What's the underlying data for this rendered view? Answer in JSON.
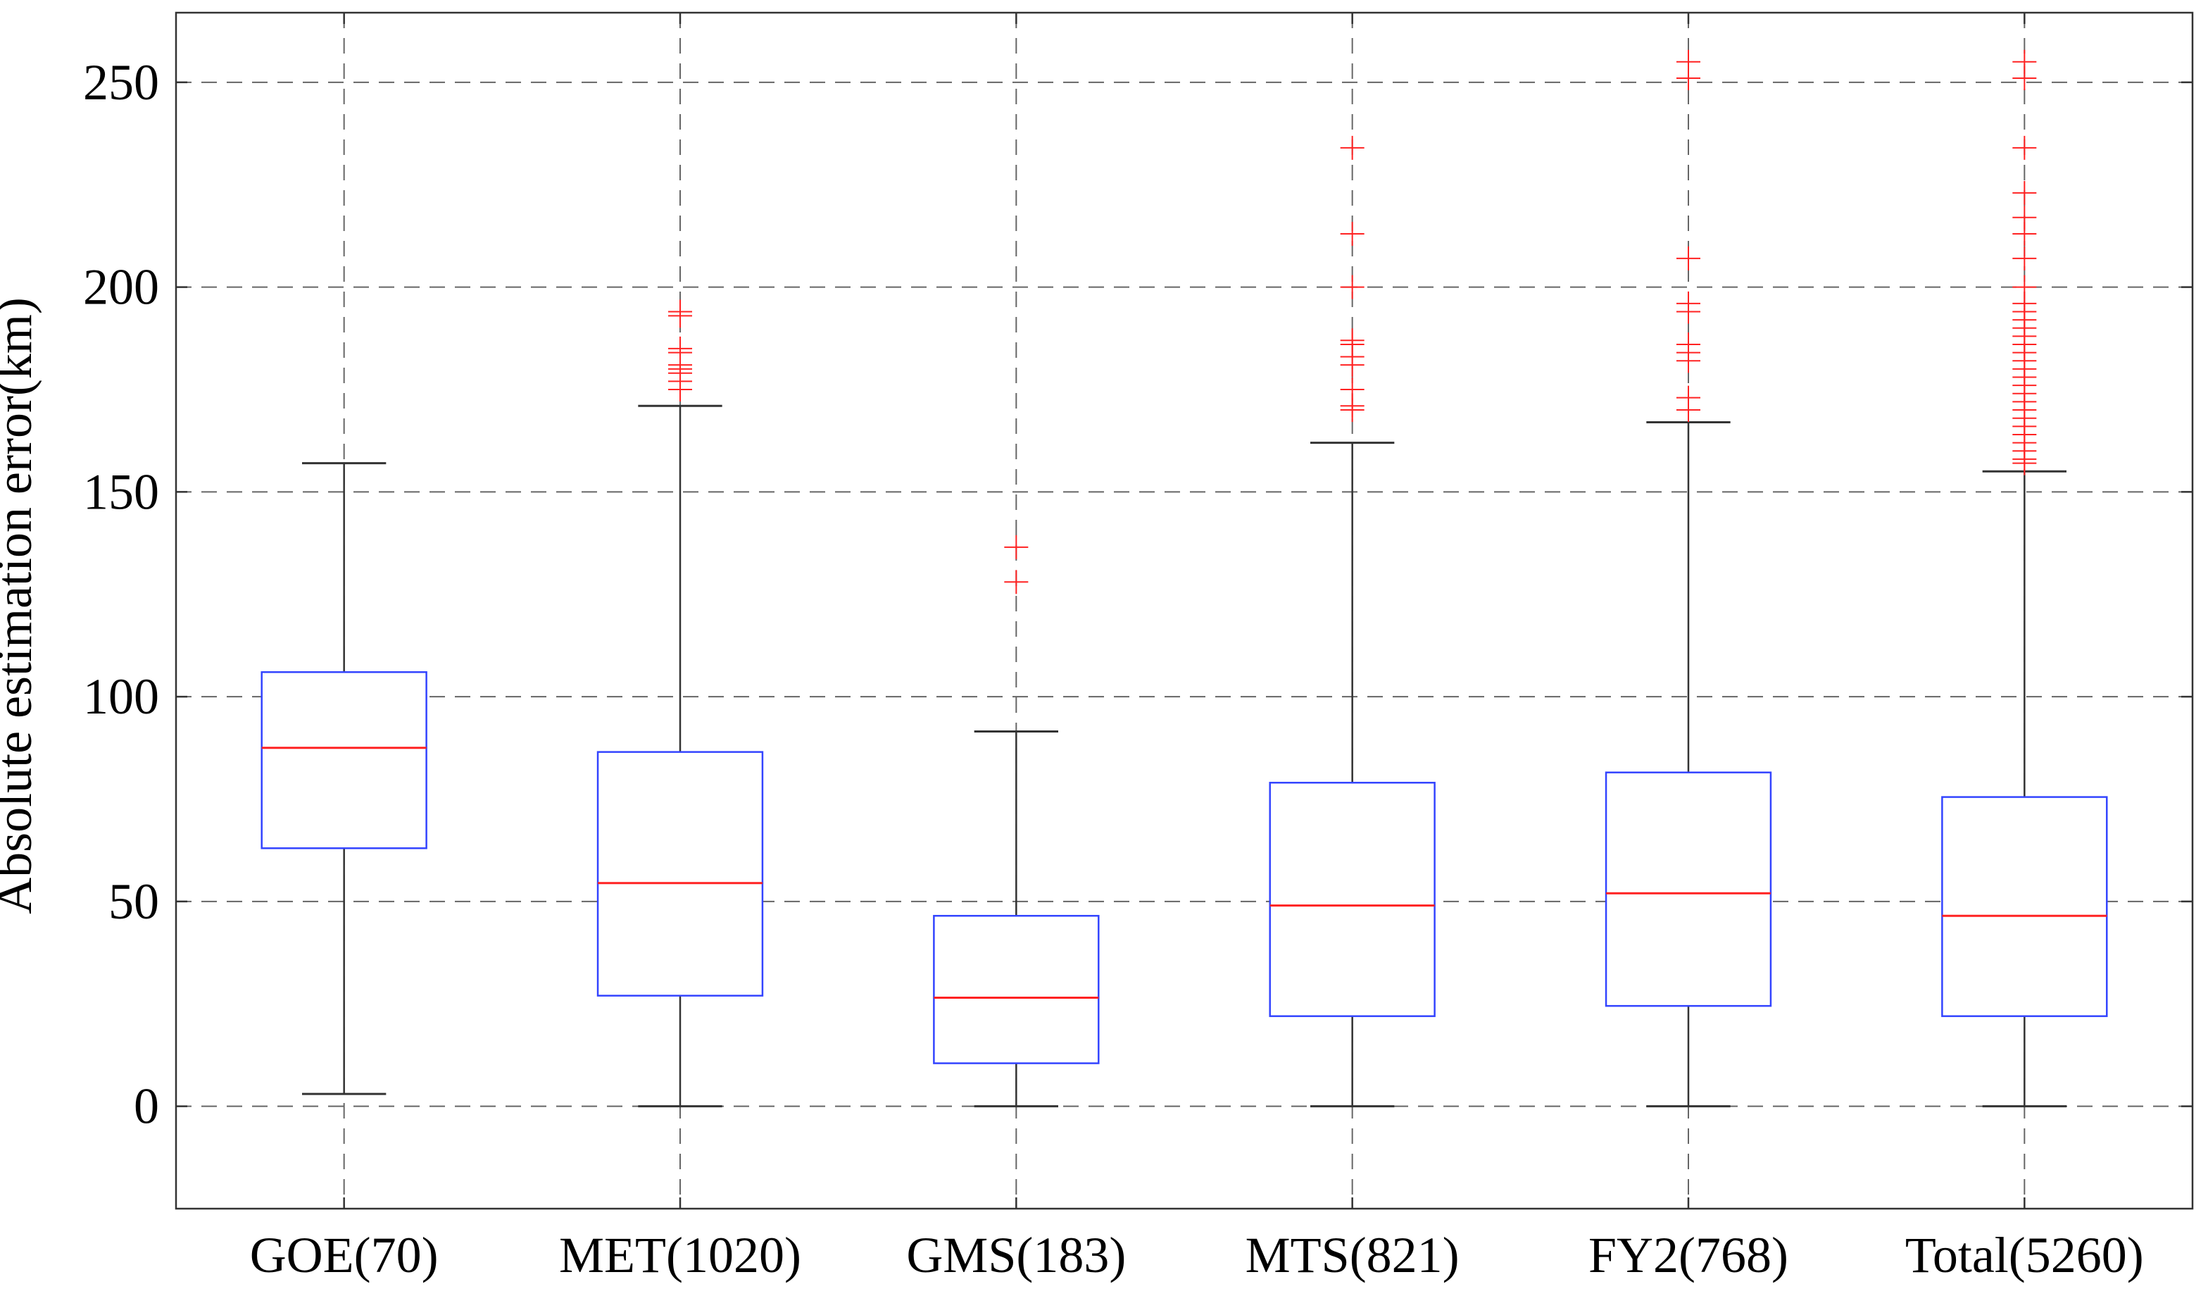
{
  "chart_data": {
    "type": "box",
    "ylabel": "Absolute estimation error(km)",
    "xlabel": "",
    "title": "",
    "ylim": [
      -25,
      267
    ],
    "yticks": [
      0,
      50,
      100,
      150,
      200,
      250
    ],
    "grid": true,
    "categories": [
      "GOE(70)",
      "MET(1020)",
      "GMS(183)",
      "MTS(821)",
      "FY2(768)",
      "Total(5260)"
    ],
    "boxes": [
      {
        "label": "GOE(70)",
        "whisker_low": 3,
        "q1": 63,
        "median": 87.5,
        "q3": 106,
        "whisker_high": 157,
        "outliers": []
      },
      {
        "label": "MET(1020)",
        "whisker_low": 0,
        "q1": 27,
        "median": 54.5,
        "q3": 86.5,
        "whisker_high": 171,
        "outliers": [
          175,
          177,
          179,
          180,
          181,
          184,
          185,
          193,
          194
        ]
      },
      {
        "label": "GMS(183)",
        "whisker_low": 0,
        "q1": 10.5,
        "median": 26.5,
        "q3": 46.5,
        "whisker_high": 91.5,
        "outliers": [
          128,
          136.5
        ]
      },
      {
        "label": "MTS(821)",
        "whisker_low": 0,
        "q1": 22,
        "median": 49,
        "q3": 79,
        "whisker_high": 162,
        "outliers": [
          170,
          171,
          175,
          181,
          183,
          186,
          187,
          200,
          213,
          234
        ]
      },
      {
        "label": "FY2(768)",
        "whisker_low": 0,
        "q1": 24.5,
        "median": 52,
        "q3": 81.5,
        "whisker_high": 167,
        "outliers": [
          170,
          173,
          182,
          184,
          186,
          194,
          196,
          207,
          251,
          255
        ]
      },
      {
        "label": "Total(5260)",
        "whisker_low": 0,
        "q1": 22,
        "median": 46.5,
        "q3": 75.5,
        "whisker_high": 155,
        "outliers": [
          157,
          158,
          160,
          162,
          164,
          166,
          168,
          170,
          172,
          174,
          176,
          178,
          180,
          182,
          184,
          186,
          188,
          190,
          192,
          194,
          196,
          200,
          207,
          213,
          217,
          223,
          234,
          251,
          255
        ]
      }
    ],
    "colors": {
      "box": "#3344ff",
      "median": "#ff2222",
      "whisker": "#333333",
      "outlier": "#ff2222",
      "grid": "#666666",
      "axis": "#333333",
      "text": "#000000"
    }
  }
}
